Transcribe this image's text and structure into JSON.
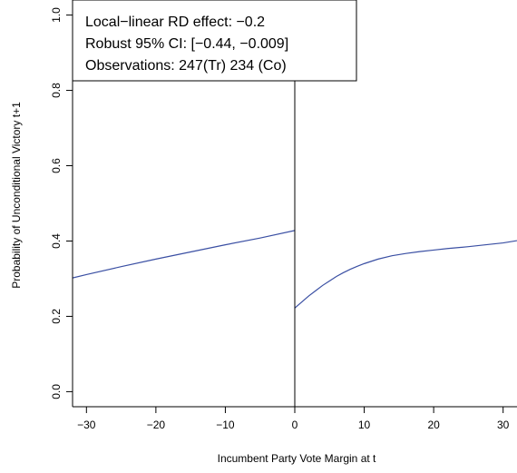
{
  "chart_data": {
    "type": "line",
    "title": "",
    "xlabel": "Incumbent Party Vote Margin at t",
    "ylabel": "Probability of Unconditional Victory t+1",
    "xlim": [
      -32,
      32
    ],
    "ylim": [
      -0.04,
      1.04
    ],
    "grid": false,
    "x_ticks": [
      -30,
      -20,
      -10,
      0,
      10,
      20,
      30
    ],
    "x_tick_labels": [
      "−30",
      "−20",
      "−10",
      "0",
      "10",
      "20",
      "30"
    ],
    "y_ticks": [
      0.0,
      0.2,
      0.4,
      0.6,
      0.8,
      1.0
    ],
    "y_tick_labels": [
      "0.0",
      "0.2",
      "0.4",
      "0.6",
      "0.8",
      "1.0"
    ],
    "cutoff": 0,
    "series": [
      {
        "color": "#3a4fa3",
        "x": [
          -32,
          -30,
          -25,
          -20,
          -15,
          -10,
          -5,
          0
        ],
        "y": [
          0.302,
          0.311,
          0.332,
          0.352,
          0.371,
          0.39,
          0.408,
          0.428
        ]
      },
      {
        "color": "#3a4fa3",
        "x": [
          0,
          1,
          2,
          3,
          4,
          5,
          6,
          7,
          8,
          9,
          10,
          12,
          14,
          16,
          18,
          20,
          22,
          25,
          28,
          30,
          32
        ],
        "y": [
          0.222,
          0.238,
          0.254,
          0.268,
          0.282,
          0.294,
          0.306,
          0.316,
          0.325,
          0.333,
          0.34,
          0.352,
          0.361,
          0.367,
          0.372,
          0.376,
          0.38,
          0.385,
          0.391,
          0.395,
          0.401
        ]
      }
    ],
    "annotation": {
      "lines": [
        "Local−linear RD effect: −0.2",
        "Robust 95% CI:  [−0.44, −0.009]",
        "Observations: 247(Tr) 234 (Co)"
      ],
      "placement": "top-left"
    }
  }
}
